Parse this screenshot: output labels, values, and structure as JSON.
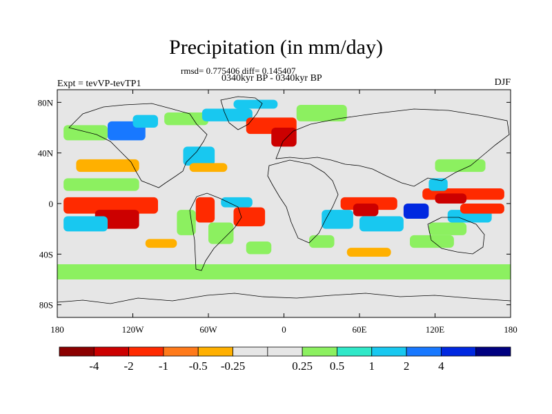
{
  "title": "Precipitation (in mm/day)",
  "stats_line": "rmsd= 0.775406 diff= 0.145407",
  "period_line": "0340kyr BP - 0340kyr BP",
  "experiment_label": "Expt = tevVP-tevTP1",
  "season_label": "DJF",
  "lat_ticks": [
    {
      "label": "80N",
      "lat": 80
    },
    {
      "label": "40N",
      "lat": 40
    },
    {
      "label": "0",
      "lat": 0
    },
    {
      "label": "40S",
      "lat": -40
    },
    {
      "label": "80S",
      "lat": -80
    }
  ],
  "lon_ticks": [
    {
      "label": "180",
      "lon": -180
    },
    {
      "label": "120W",
      "lon": -120
    },
    {
      "label": "60W",
      "lon": -60
    },
    {
      "label": "0",
      "lon": 0
    },
    {
      "label": "60E",
      "lon": 60
    },
    {
      "label": "120E",
      "lon": 120
    },
    {
      "label": "180",
      "lon": 180
    }
  ],
  "colorbar": {
    "colors": [
      "#8b0000",
      "#cc0000",
      "#ff2a00",
      "#ff7a1a",
      "#ffb000",
      "#e6e6e6",
      "#e6e6e6",
      "#8cf060",
      "#30e8c8",
      "#18c8f0",
      "#1878ff",
      "#0028e0",
      "#000080"
    ],
    "labels": [
      "-4",
      "-2",
      "-1",
      "-0.5",
      "-0.25",
      "0.25",
      "0.5",
      "1",
      "2",
      "4"
    ]
  },
  "anomaly_cells": [
    {
      "lon": -175,
      "lat": 5,
      "lon2": -100,
      "lat2": -8,
      "level": -1
    },
    {
      "lon": -150,
      "lat": -5,
      "lon2": -115,
      "lat2": -20,
      "level": -4
    },
    {
      "lon": -175,
      "lat": -10,
      "lon2": -140,
      "lat2": -22,
      "level": 1
    },
    {
      "lon": -175,
      "lat": 20,
      "lon2": -115,
      "lat2": 10,
      "level": 0.5
    },
    {
      "lon": -165,
      "lat": 35,
      "lon2": -115,
      "lat2": 25,
      "level": -0.5
    },
    {
      "lon": -175,
      "lat": 62,
      "lon2": -140,
      "lat2": 50,
      "level": 0.5
    },
    {
      "lon": -140,
      "lat": 65,
      "lon2": -110,
      "lat2": 50,
      "level": 2
    },
    {
      "lon": -120,
      "lat": 70,
      "lon2": -100,
      "lat2": 60,
      "level": 1
    },
    {
      "lon": -95,
      "lat": 72,
      "lon2": -60,
      "lat2": 62,
      "level": 0.5
    },
    {
      "lon": -80,
      "lat": 45,
      "lon2": -55,
      "lat2": 30,
      "level": 1
    },
    {
      "lon": -75,
      "lat": 32,
      "lon2": -45,
      "lat2": 25,
      "level": -0.5
    },
    {
      "lon": -65,
      "lat": 75,
      "lon2": -25,
      "lat2": 65,
      "level": 1
    },
    {
      "lon": -30,
      "lat": 68,
      "lon2": 10,
      "lat2": 55,
      "level": -1
    },
    {
      "lon": -10,
      "lat": 60,
      "lon2": 10,
      "lat2": 45,
      "level": -4
    },
    {
      "lon": 10,
      "lat": 78,
      "lon2": 50,
      "lat2": 65,
      "level": 0.5
    },
    {
      "lon": -40,
      "lat": 82,
      "lon2": -5,
      "lat2": 75,
      "level": 1
    },
    {
      "lon": -50,
      "lat": 5,
      "lon2": -25,
      "lat2": -3,
      "level": 1
    },
    {
      "lon": -40,
      "lat": -3,
      "lon2": -15,
      "lat2": -18,
      "level": -1
    },
    {
      "lon": -70,
      "lat": 5,
      "lon2": -55,
      "lat2": -15,
      "level": -1
    },
    {
      "lon": -60,
      "lat": -15,
      "lon2": -40,
      "lat2": -32,
      "level": 0.5
    },
    {
      "lon": -85,
      "lat": -5,
      "lon2": -70,
      "lat2": -25,
      "level": 0.5
    },
    {
      "lon": -110,
      "lat": -28,
      "lon2": -85,
      "lat2": -35,
      "level": -0.5
    },
    {
      "lon": -30,
      "lat": -30,
      "lon2": -10,
      "lat2": -40,
      "level": 0.5
    },
    {
      "lon": 30,
      "lat": -5,
      "lon2": 55,
      "lat2": -20,
      "level": 1
    },
    {
      "lon": 45,
      "lat": 5,
      "lon2": 90,
      "lat2": -5,
      "level": -1
    },
    {
      "lon": 55,
      "lat": 0,
      "lon2": 75,
      "lat2": -10,
      "level": -4
    },
    {
      "lon": 60,
      "lat": -10,
      "lon2": 95,
      "lat2": -22,
      "level": 1
    },
    {
      "lon": 95,
      "lat": 0,
      "lon2": 115,
      "lat2": -12,
      "level": 4
    },
    {
      "lon": 110,
      "lat": 12,
      "lon2": 175,
      "lat2": 3,
      "level": -1
    },
    {
      "lon": 120,
      "lat": 8,
      "lon2": 145,
      "lat2": 0,
      "level": -4
    },
    {
      "lon": 130,
      "lat": -5,
      "lon2": 165,
      "lat2": -15,
      "level": 1
    },
    {
      "lon": 140,
      "lat": 0,
      "lon2": 175,
      "lat2": -8,
      "level": -1
    },
    {
      "lon": 120,
      "lat": 35,
      "lon2": 160,
      "lat2": 25,
      "level": 0.5
    },
    {
      "lon": 115,
      "lat": 20,
      "lon2": 130,
      "lat2": 10,
      "level": 1
    },
    {
      "lon": 100,
      "lat": -25,
      "lon2": 135,
      "lat2": -35,
      "level": 0.5
    },
    {
      "lon": 115,
      "lat": -15,
      "lon2": 145,
      "lat2": -25,
      "level": 0.5
    },
    {
      "lon": 50,
      "lat": -35,
      "lon2": 85,
      "lat2": -42,
      "level": -0.5
    },
    {
      "lon": 20,
      "lat": -25,
      "lon2": 40,
      "lat2": -35,
      "level": 0.5
    }
  ],
  "zonal_band": {
    "lat_top": -48,
    "lat_bottom": -60,
    "level": 0.5
  }
}
